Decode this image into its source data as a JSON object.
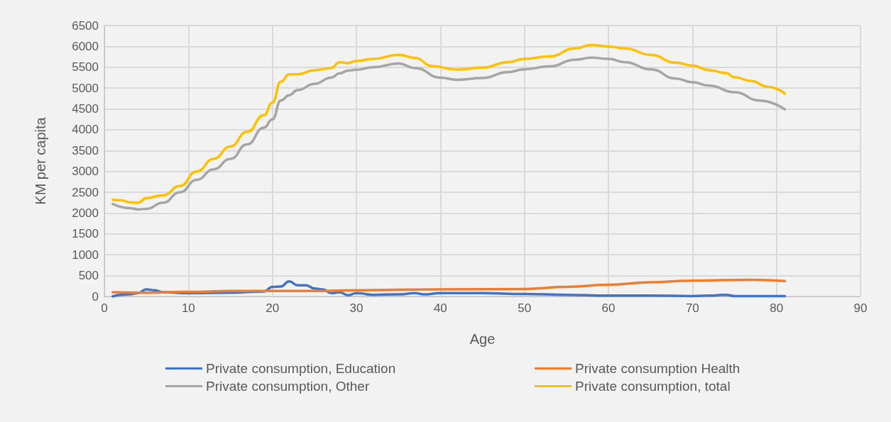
{
  "chart_data": {
    "type": "line",
    "xlabel": "Age",
    "ylabel": "KM per capita",
    "xlim": [
      0,
      90
    ],
    "xticks": [
      0,
      10,
      20,
      30,
      40,
      50,
      60,
      70,
      80,
      90
    ],
    "ylim": [
      0,
      6500
    ],
    "yticks": [
      0,
      500,
      1000,
      1500,
      2000,
      2500,
      3000,
      3500,
      4000,
      4500,
      5000,
      5500,
      6000,
      6500
    ],
    "grid": true,
    "legend": "bottom",
    "marker": "none",
    "line_style": "solid",
    "series": [
      {
        "name": "Private consumption, Education",
        "color": "#4472c4",
        "x": [
          1,
          2,
          3,
          4,
          5,
          6,
          7,
          10,
          15,
          19,
          20,
          21,
          22,
          23,
          24,
          25,
          26,
          27,
          28,
          29,
          30,
          32,
          35,
          37,
          38,
          40,
          45,
          50,
          55,
          60,
          65,
          70,
          72,
          74,
          75,
          81
        ],
        "values": [
          0,
          40,
          50,
          80,
          170,
          150,
          100,
          80,
          90,
          120,
          230,
          240,
          360,
          270,
          270,
          190,
          170,
          80,
          100,
          30,
          80,
          40,
          50,
          80,
          50,
          80,
          80,
          60,
          40,
          20,
          20,
          10,
          20,
          40,
          10,
          10
        ]
      },
      {
        "name": "Private consumption Health",
        "color": "#ed7d31",
        "x": [
          1,
          5,
          10,
          15,
          25,
          30,
          40,
          50,
          55,
          60,
          65,
          70,
          77,
          81
        ],
        "values": [
          100,
          90,
          110,
          130,
          130,
          150,
          170,
          180,
          230,
          280,
          340,
          380,
          400,
          370
        ]
      },
      {
        "name": "Private consumption, Other",
        "color": "#a5a5a5",
        "x": [
          1,
          3,
          4,
          5,
          7,
          9,
          11,
          13,
          15,
          17,
          19,
          20,
          21,
          22,
          23,
          25,
          27,
          28,
          29,
          30,
          32,
          35,
          37,
          40,
          42,
          45,
          48,
          50,
          53,
          56,
          58,
          60,
          62,
          65,
          68,
          70,
          72,
          75,
          78,
          81
        ],
        "values": [
          2220,
          2120,
          2090,
          2100,
          2250,
          2500,
          2800,
          3050,
          3300,
          3650,
          4050,
          4250,
          4700,
          4830,
          4950,
          5100,
          5250,
          5350,
          5420,
          5440,
          5500,
          5590,
          5480,
          5250,
          5200,
          5240,
          5380,
          5450,
          5520,
          5680,
          5730,
          5700,
          5620,
          5450,
          5230,
          5140,
          5060,
          4900,
          4700,
          4490
        ]
      },
      {
        "name": "Private consumption, total",
        "color": "#ffc000",
        "x": [
          1,
          2,
          3,
          4,
          5,
          7,
          9,
          11,
          13,
          15,
          17,
          19,
          20,
          21,
          22,
          23,
          25,
          27,
          28,
          29,
          30,
          32,
          35,
          37,
          39,
          42,
          45,
          48,
          50,
          53,
          56,
          58,
          60,
          62,
          65,
          68,
          70,
          72,
          74,
          75,
          77,
          79,
          81
        ],
        "values": [
          2320,
          2310,
          2260,
          2250,
          2360,
          2430,
          2650,
          3000,
          3300,
          3600,
          3950,
          4350,
          4650,
          5150,
          5330,
          5330,
          5430,
          5480,
          5620,
          5600,
          5650,
          5700,
          5800,
          5720,
          5530,
          5440,
          5490,
          5620,
          5700,
          5760,
          5950,
          6030,
          6000,
          5950,
          5800,
          5610,
          5540,
          5430,
          5360,
          5260,
          5170,
          5030,
          4870
        ]
      }
    ]
  }
}
